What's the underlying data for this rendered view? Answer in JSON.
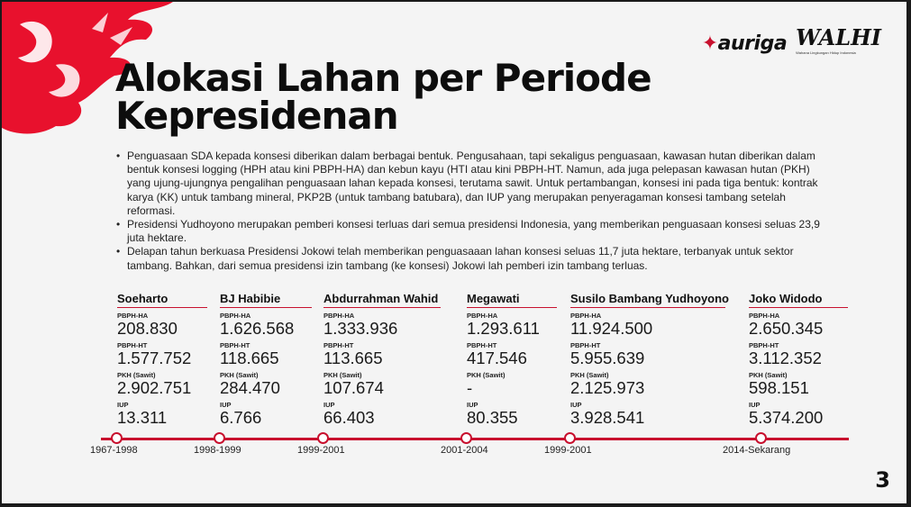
{
  "logos": {
    "auriga": "auriga",
    "walhi": "WALHI",
    "walhi_sub": "Wahana Lingkungan Hidup Indonesia"
  },
  "title": {
    "line1": "Alokasi Lahan per Periode",
    "line2": "Kepresidenan"
  },
  "bullets": [
    "Penguasaan SDA kepada konsesi diberikan dalam berbagai bentuk. Pengusahaan, tapi sekaligus penguasaan, kawasan hutan diberikan dalam bentuk konsesi logging (HPH atau kini PBPH-HA) dan kebun kayu (HTI atau kini PBPH-HT. Namun, ada juga pelepasan kawasan hutan (PKH) yang ujung-ujungnya pengalihan penguasaan lahan kepada konsesi, terutama sawit. Untuk pertambangan, konsesi ini pada tiga bentuk: kontrak karya (KK) untuk tambang mineral, PKP2B (untuk tambang batubara), dan IUP yang merupakan penyeragaman konsesi tambang setelah reformasi.",
    "Presidensi Yudhoyono merupakan pemberi konsesi terluas dari semua presidensi Indonesia, yang memberikan penguasaan konsesi seluas 23,9 juta hektare.",
    "Delapan tahun berkuasa Presidensi Jokowi telah memberikan penguasaaan lahan konsesi seluas 11,7 juta hektare, terbanyak untuk sektor tambang. Bahkan, dari semua presidensi izin tambang (ke konsesi) Jokowi lah pemberi izin tambang terluas."
  ],
  "labels": {
    "hphha": "PBPH-HA",
    "hphht": "PBPH-HT",
    "pkh": "PKH (Sawit)",
    "iup": "IUP"
  },
  "presidents": [
    {
      "name": "Soeharto",
      "pbph_ha": "208.830",
      "pbph_ht": "1.577.752",
      "pkh": "2.902.751",
      "iup": "13.311",
      "period": "1967-1998"
    },
    {
      "name": "BJ Habibie",
      "pbph_ha": "1.626.568",
      "pbph_ht": "118.665",
      "pkh": "284.470",
      "iup": "6.766",
      "period": "1998-1999"
    },
    {
      "name": "Abdurrahman Wahid",
      "pbph_ha": "1.333.936",
      "pbph_ht": "113.665",
      "pkh": "107.674",
      "iup": "66.403",
      "period": "1999-2001"
    },
    {
      "name": "Megawati",
      "pbph_ha": "1.293.611",
      "pbph_ht": "417.546",
      "pkh": "-",
      "iup": "80.355",
      "period": "2001-2004"
    },
    {
      "name": "Susilo Bambang Yudhoyono",
      "pbph_ha": "11.924.500",
      "pbph_ht": "5.955.639",
      "pkh": "2.125.973",
      "iup": "3.928.541",
      "period": "1999-2001"
    },
    {
      "name": "Joko Widodo",
      "pbph_ha": "2.650.345",
      "pbph_ht": "3.112.352",
      "pkh": "598.151",
      "iup": "5.374.200",
      "period": "2014-Sekarang"
    }
  ],
  "page_number": "3",
  "colors": {
    "accent": "#c8102e",
    "background": "#f4f4f4",
    "text": "#111111"
  }
}
